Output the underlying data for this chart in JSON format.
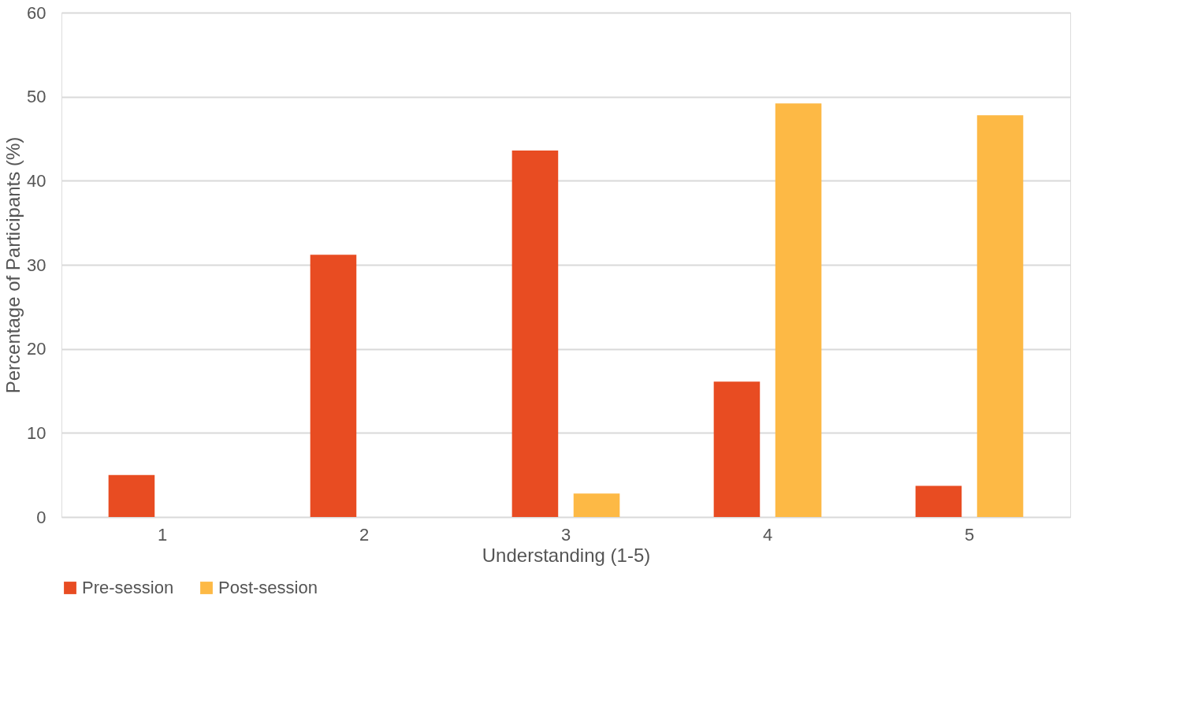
{
  "chart_data": {
    "type": "bar",
    "xlabel": "Understanding (1-5)",
    "ylabel": "Percentage of Participants (%)",
    "categories": [
      "1",
      "2",
      "3",
      "4",
      "5"
    ],
    "series": [
      {
        "name": "Pre-session",
        "color": "#e84c22",
        "values": [
          5.0,
          31.2,
          43.6,
          16.1,
          3.7
        ]
      },
      {
        "name": "Post-session",
        "color": "#fdb945",
        "values": [
          0,
          0,
          2.8,
          49.2,
          47.8
        ]
      }
    ],
    "ylim": [
      0,
      60
    ],
    "yticks": [
      0,
      10,
      20,
      30,
      40,
      50,
      60
    ],
    "grid": "y",
    "legend": "bottom"
  }
}
